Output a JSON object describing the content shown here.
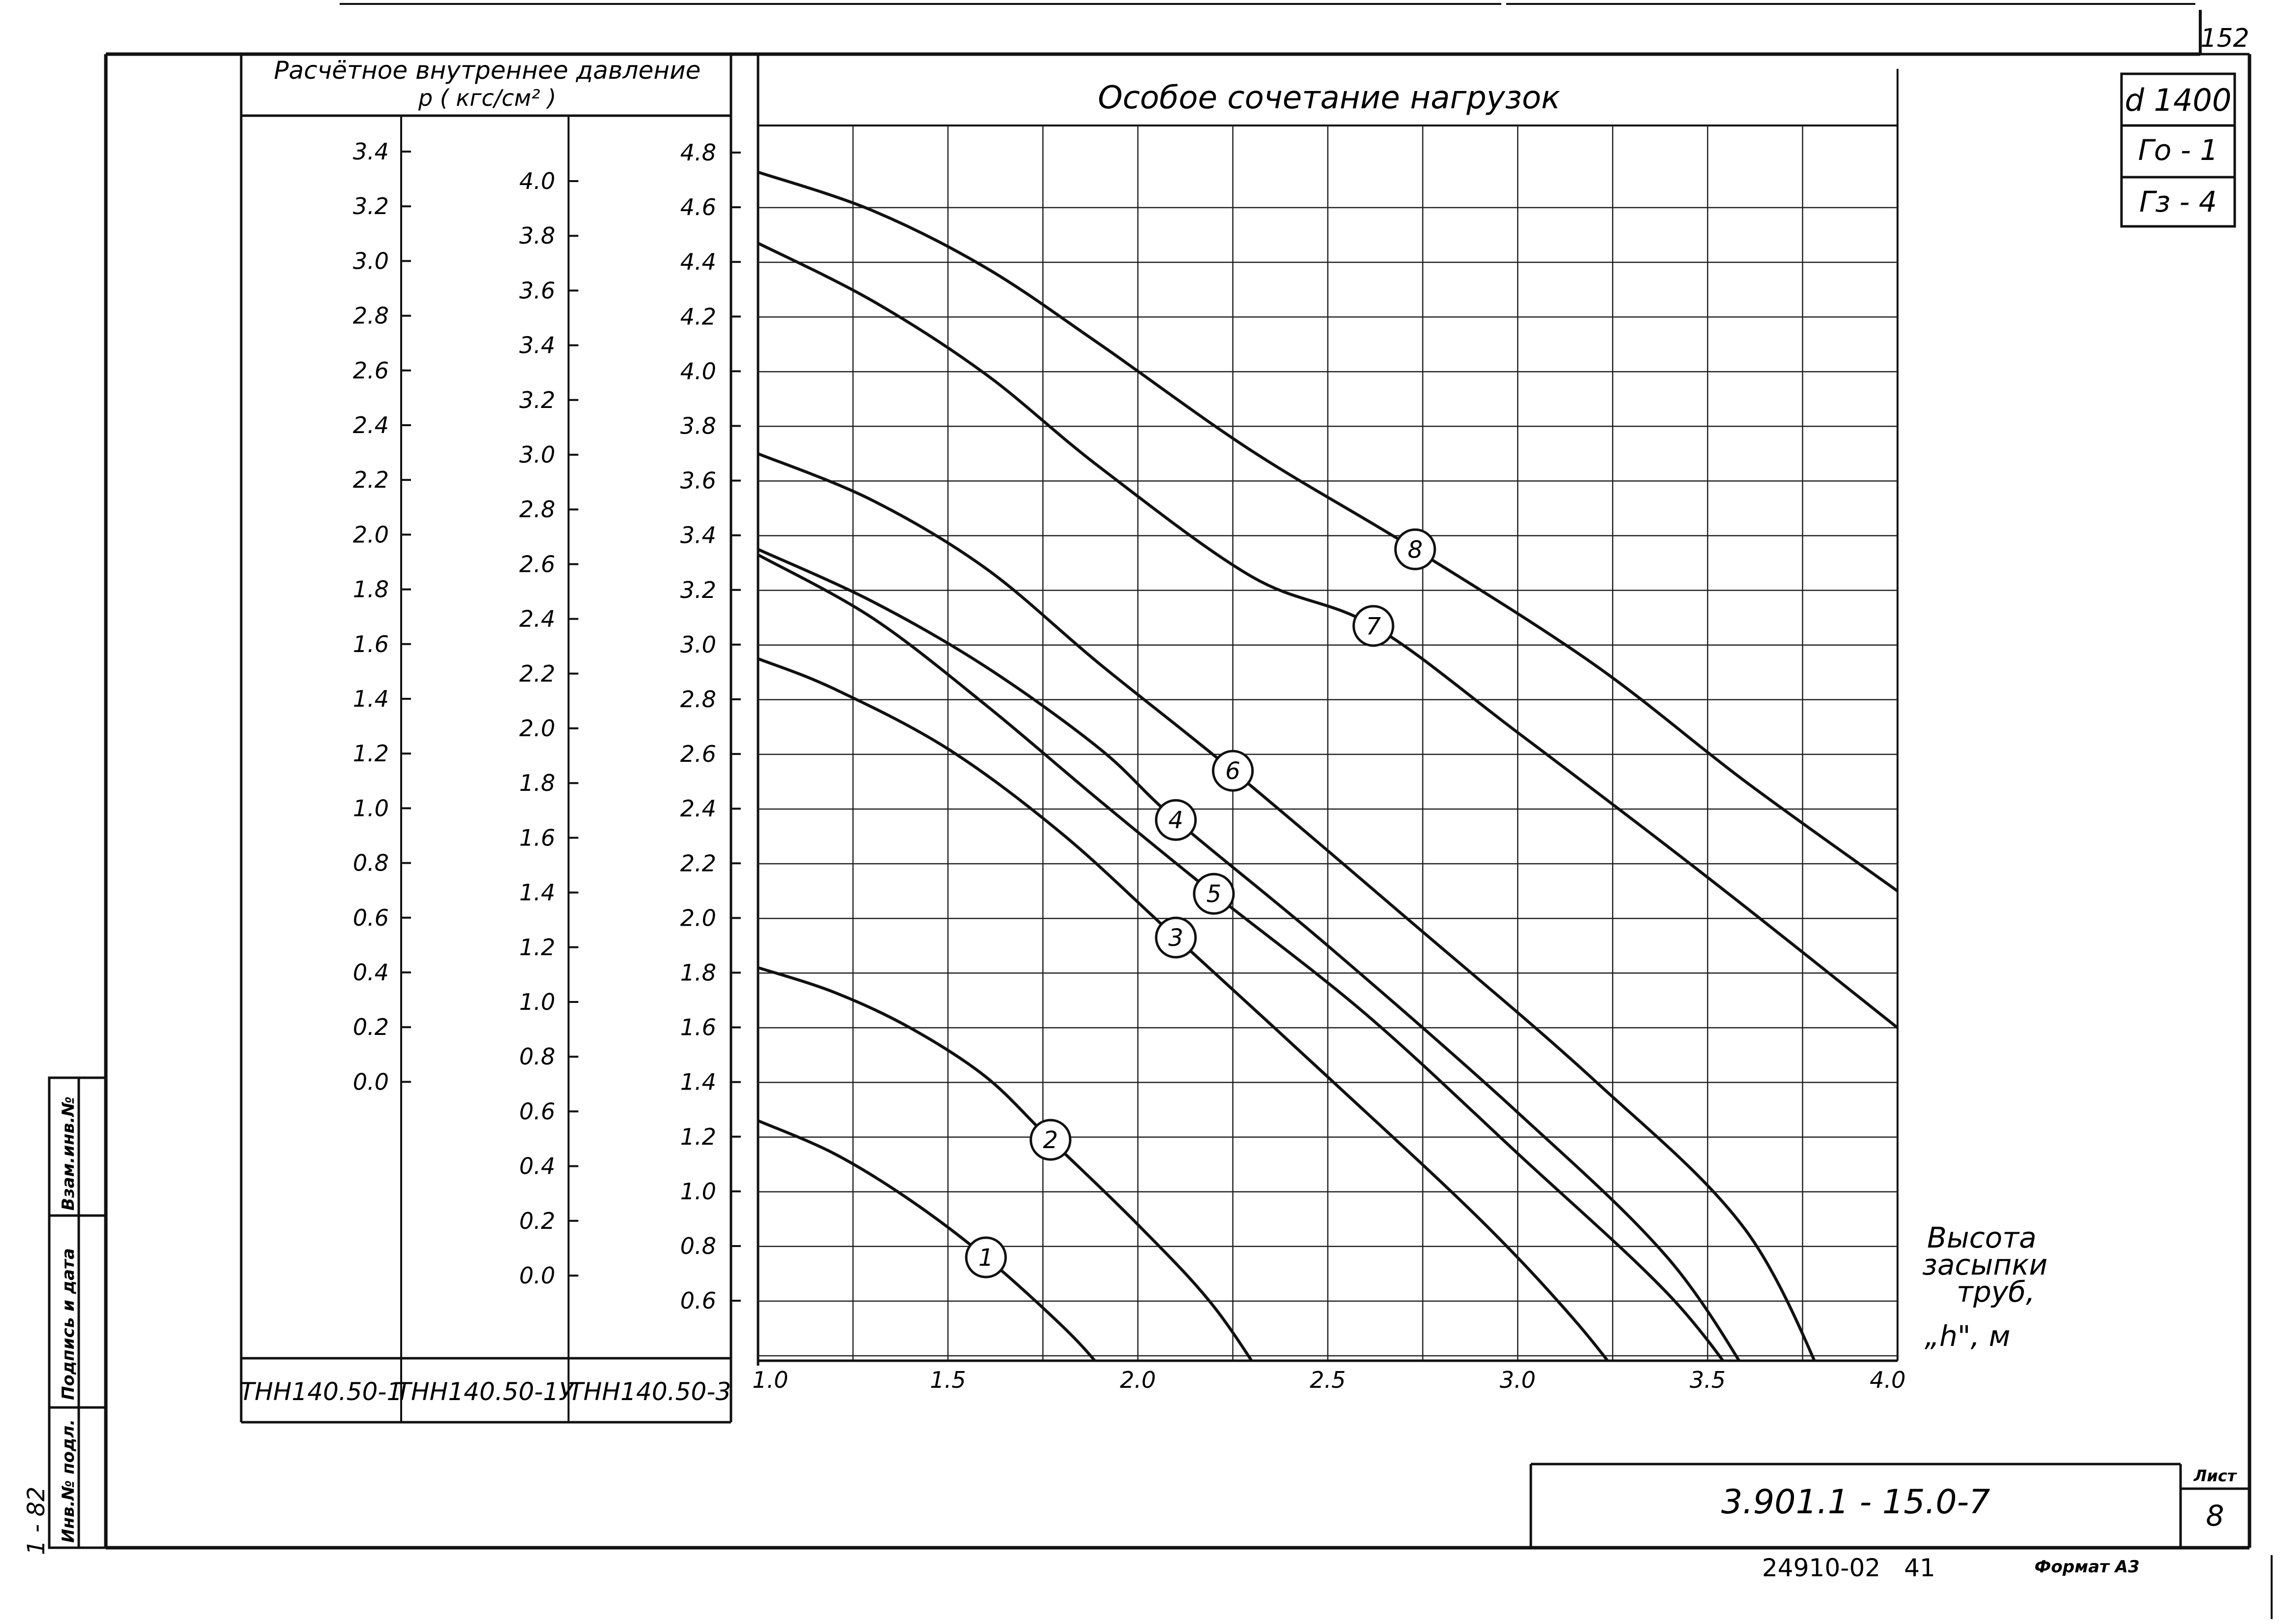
{
  "sheet": {
    "page_number": "152",
    "side_code": "1 - 82",
    "stamp_labels": [
      "Инв.№ подл.",
      "Подпись и дата",
      "Взам.инв.№"
    ],
    "designation": "3.901.1 - 15.0-7",
    "sheet_label": "Лист",
    "sheet_number": "8",
    "bottom_code": "24910-02",
    "bottom_code2": "41",
    "format_label": "Формат А3",
    "info_box": [
      "d 1400",
      "Го - 1",
      "Гз - 4"
    ]
  },
  "pressure_table": {
    "header_line1": "Расчётное внутреннее давление",
    "header_line2": "p ( кгс/см² )",
    "columns": [
      {
        "name": "ТНН140.50-1",
        "ticks": [
          "3.4",
          "3.2",
          "3.0",
          "2.8",
          "2.6",
          "2.4",
          "2.2",
          "2.0",
          "1.8",
          "1.6",
          "1.4",
          "1.2",
          "1.0",
          "0.8",
          "0.6",
          "0.4",
          "0.2",
          "0.0"
        ]
      },
      {
        "name": "ТНН140.50-1У",
        "ticks": [
          "4.0",
          "3.8",
          "3.6",
          "3.4",
          "3.2",
          "3.0",
          "2.8",
          "2.6",
          "2.4",
          "2.2",
          "2.0",
          "1.8",
          "1.6",
          "1.4",
          "1.2",
          "1.0",
          "0.8",
          "0.6",
          "0.4",
          "0.2",
          "0.0"
        ]
      },
      {
        "name": "ТНН140.50-3",
        "ticks": [
          "4.8",
          "4.6",
          "4.4",
          "4.2",
          "4.0",
          "3.8",
          "3.6",
          "3.4",
          "3.2",
          "3.0",
          "2.8",
          "2.6",
          "2.4",
          "2.2",
          "2.0",
          "1.8",
          "1.6",
          "1.4",
          "1.2",
          "1.0",
          "0.8",
          "0.6"
        ]
      }
    ]
  },
  "chart_data": {
    "type": "line",
    "title": "Особое сочетание нагрузок",
    "xlabel": "Высота засыпки труб, „h\", м",
    "ylabel": "",
    "xlim": [
      1.0,
      4.0
    ],
    "ylim": [
      0.4,
      4.9
    ],
    "x_ticks": [
      "1.0",
      "1.5",
      "2.0",
      "2.5",
      "3.0",
      "3.5",
      "4.0"
    ],
    "y_grid": [
      0.6,
      0.8,
      1.0,
      1.2,
      1.4,
      1.6,
      1.8,
      2.0,
      2.2,
      2.4,
      2.6,
      2.8,
      3.0,
      3.2,
      3.4,
      3.6,
      3.8,
      4.0,
      4.2,
      4.4,
      4.6,
      4.8
    ],
    "grid": true,
    "series": [
      {
        "name": "1",
        "label_at": [
          1.6,
          0.96
        ],
        "points": [
          [
            1.0,
            1.46
          ],
          [
            1.2,
            1.34
          ],
          [
            1.4,
            1.17
          ],
          [
            1.6,
            0.96
          ],
          [
            1.8,
            0.71
          ],
          [
            1.9,
            0.56
          ],
          [
            1.97,
            0.43
          ]
        ]
      },
      {
        "name": "2",
        "label_at": [
          1.77,
          1.39
        ],
        "points": [
          [
            1.0,
            2.02
          ],
          [
            1.2,
            1.93
          ],
          [
            1.4,
            1.8
          ],
          [
            1.6,
            1.62
          ],
          [
            1.77,
            1.39
          ],
          [
            2.0,
            1.08
          ],
          [
            2.2,
            0.78
          ],
          [
            2.37,
            0.43
          ]
        ]
      },
      {
        "name": "3",
        "label_at": [
          2.1,
          2.13
        ],
        "points": [
          [
            1.0,
            3.15
          ],
          [
            1.2,
            3.04
          ],
          [
            1.5,
            2.82
          ],
          [
            1.8,
            2.51
          ],
          [
            2.1,
            2.13
          ],
          [
            2.5,
            1.62
          ],
          [
            2.9,
            1.1
          ],
          [
            3.15,
            0.73
          ],
          [
            3.32,
            0.43
          ]
        ]
      },
      {
        "name": "4",
        "label_at": [
          2.1,
          2.56
        ],
        "points": [
          [
            1.0,
            3.55
          ],
          [
            1.3,
            3.36
          ],
          [
            1.6,
            3.12
          ],
          [
            1.9,
            2.82
          ],
          [
            2.1,
            2.56
          ],
          [
            2.5,
            2.1
          ],
          [
            3.0,
            1.49
          ],
          [
            3.4,
            0.95
          ],
          [
            3.65,
            0.43
          ]
        ]
      },
      {
        "name": "5",
        "label_at": [
          2.2,
          2.29
        ],
        "points": [
          [
            1.0,
            3.53
          ],
          [
            1.3,
            3.3
          ],
          [
            1.6,
            2.98
          ],
          [
            1.9,
            2.63
          ],
          [
            2.2,
            2.29
          ],
          [
            2.6,
            1.85
          ],
          [
            3.0,
            1.34
          ],
          [
            3.4,
            0.82
          ],
          [
            3.62,
            0.43
          ]
        ]
      },
      {
        "name": "6",
        "label_at": [
          2.25,
          2.74
        ],
        "points": [
          [
            1.0,
            3.9
          ],
          [
            1.3,
            3.73
          ],
          [
            1.6,
            3.48
          ],
          [
            1.9,
            3.13
          ],
          [
            2.25,
            2.74
          ],
          [
            2.7,
            2.21
          ],
          [
            3.2,
            1.61
          ],
          [
            3.6,
            1.06
          ],
          [
            3.83,
            0.43
          ]
        ]
      },
      {
        "name": "7",
        "label_at": [
          2.62,
          3.27
        ],
        "points": [
          [
            1.0,
            4.67
          ],
          [
            1.3,
            4.46
          ],
          [
            1.6,
            4.19
          ],
          [
            1.9,
            3.85
          ],
          [
            2.3,
            3.45
          ],
          [
            2.62,
            3.27
          ],
          [
            3.0,
            2.88
          ],
          [
            3.5,
            2.35
          ],
          [
            4.0,
            1.8
          ]
        ]
      },
      {
        "name": "8",
        "label_at": [
          2.73,
          3.55
        ],
        "points": [
          [
            1.0,
            4.93
          ],
          [
            1.3,
            4.79
          ],
          [
            1.6,
            4.58
          ],
          [
            1.9,
            4.3
          ],
          [
            2.3,
            3.91
          ],
          [
            2.73,
            3.55
          ],
          [
            3.2,
            3.13
          ],
          [
            3.6,
            2.7
          ],
          [
            4.0,
            2.3
          ]
        ]
      }
    ]
  }
}
